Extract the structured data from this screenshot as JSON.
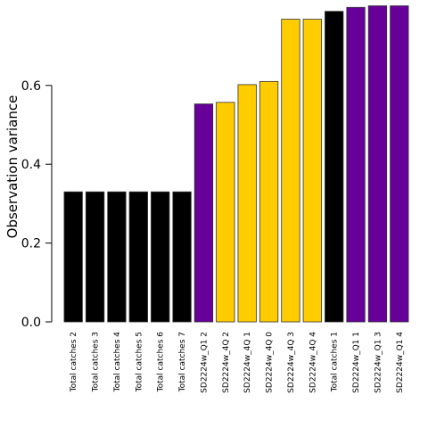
{
  "chart_data": {
    "type": "bar",
    "title": "",
    "xlabel": "",
    "ylabel": "Observation variance",
    "ylim": [
      0,
      0.8
    ],
    "yticks": [
      "0.0",
      "0.2",
      "0.4",
      "0.6"
    ],
    "grid": false,
    "categories": [
      "Total catches 2",
      "Total catches 3",
      "Total catches 4",
      "Total catches 5",
      "Total catches 6",
      "Total catches 7",
      "SD2224w_Q1 2",
      "SD2224w_4Q 2",
      "SD2224w_4Q 1",
      "SD2224w_4Q 0",
      "SD2224w_4Q 3",
      "SD2224w_4Q 4",
      "Total catches 1",
      "SD2224w_Q1 1",
      "SD2224w_Q1 3",
      "SD2224w_Q1 4"
    ],
    "values": [
      0.33,
      0.33,
      0.33,
      0.33,
      0.33,
      0.33,
      0.553,
      0.557,
      0.602,
      0.61,
      0.768,
      0.768,
      0.788,
      0.798,
      0.802,
      0.802
    ],
    "bar_colors": [
      "#000000",
      "#000000",
      "#000000",
      "#000000",
      "#000000",
      "#000000",
      "#660099",
      "#FFCC00",
      "#FFCC00",
      "#FFCC00",
      "#FFCC00",
      "#FFCC00",
      "#000000",
      "#660099",
      "#660099",
      "#660099"
    ]
  }
}
